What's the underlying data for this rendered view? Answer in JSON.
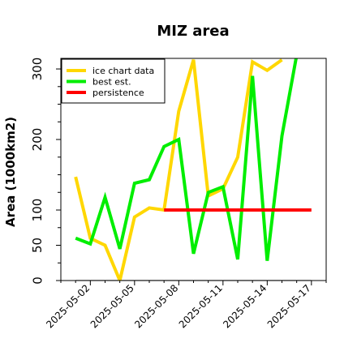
{
  "chart_data": {
    "type": "line",
    "title": "MIZ area",
    "xlabel": "",
    "ylabel": "Area (1000km2)",
    "ylim": [
      0,
      315
    ],
    "xlim": [
      "2025-04-30",
      "2025-05-18"
    ],
    "y_ticks": [
      0,
      50,
      100,
      200,
      300
    ],
    "x_tick_labels": [
      "2025-05-02",
      "2025-05-05",
      "2025-05-08",
      "2025-05-11",
      "2025-05-14",
      "2025-05-17"
    ],
    "legend_position": "top-left",
    "grid": false,
    "series": [
      {
        "name": "ice chart data",
        "color": "#ffd700",
        "x": [
          "2025-05-01",
          "2025-05-02",
          "2025-05-03",
          "2025-05-04",
          "2025-05-05",
          "2025-05-06",
          "2025-05-07",
          "2025-05-08",
          "2025-05-09",
          "2025-05-10",
          "2025-05-11",
          "2025-05-12",
          "2025-05-13",
          "2025-05-14",
          "2025-05-15"
        ],
        "values": [
          147,
          60,
          50,
          0,
          90,
          103,
          100,
          240,
          313,
          120,
          130,
          175,
          310,
          298,
          313
        ]
      },
      {
        "name": "best est.",
        "color": "#00ee00",
        "x": [
          "2025-05-01",
          "2025-05-02",
          "2025-05-03",
          "2025-05-04",
          "2025-05-05",
          "2025-05-06",
          "2025-05-07",
          "2025-05-08",
          "2025-05-09",
          "2025-05-10",
          "2025-05-11",
          "2025-05-12",
          "2025-05-13",
          "2025-05-14",
          "2025-05-15",
          "2025-05-16"
        ],
        "values": [
          60,
          52,
          118,
          45,
          138,
          143,
          190,
          200,
          38,
          125,
          133,
          30,
          290,
          28,
          205,
          320
        ]
      },
      {
        "name": "persistence",
        "color": "#ff0000",
        "x": [
          "2025-05-07",
          "2025-05-17"
        ],
        "values": [
          100,
          100
        ]
      }
    ],
    "zero_line": {
      "color": "#808080",
      "x": [
        "2025-05-01",
        "2025-05-17"
      ],
      "value": 0
    }
  }
}
